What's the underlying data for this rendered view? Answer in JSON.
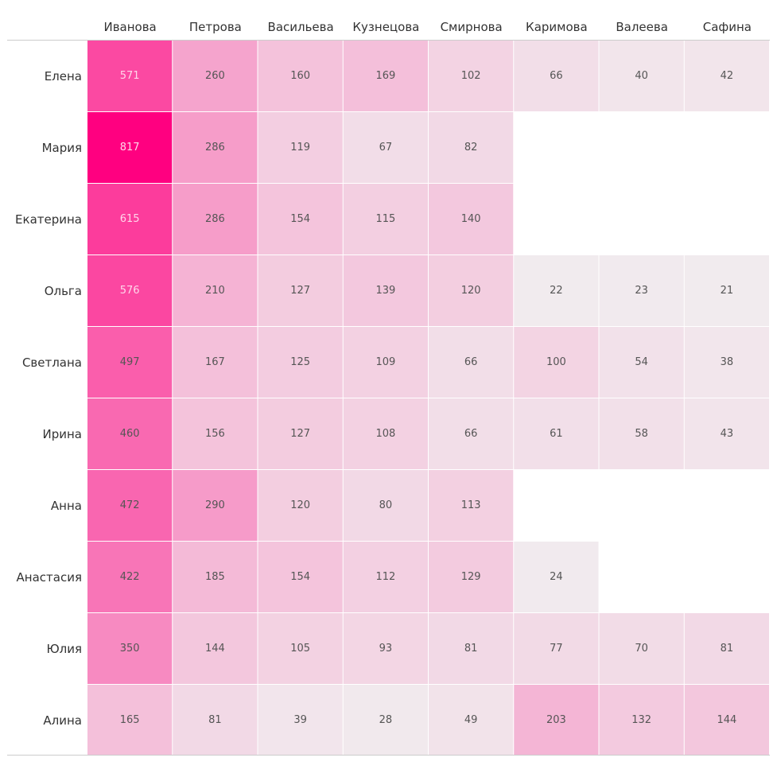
{
  "chart_data": {
    "type": "heatmap",
    "title": "",
    "xlabel": "",
    "ylabel": "",
    "columns": [
      "Иванова",
      "Петрова",
      "Васильева",
      "Кузнецова",
      "Смирнова",
      "Каримова",
      "Валеева",
      "Сафина"
    ],
    "rows": [
      "Елена",
      "Мария",
      "Екатерина",
      "Ольга",
      "Светлана",
      "Ирина",
      "Анна",
      "Анастасия",
      "Юлия",
      "Алина"
    ],
    "values": [
      [
        571,
        260,
        160,
        169,
        102,
        66,
        40,
        42
      ],
      [
        817,
        286,
        119,
        67,
        82,
        null,
        null,
        null
      ],
      [
        615,
        286,
        154,
        115,
        140,
        null,
        null,
        null
      ],
      [
        576,
        210,
        127,
        139,
        120,
        22,
        23,
        21
      ],
      [
        497,
        167,
        125,
        109,
        66,
        100,
        54,
        38
      ],
      [
        460,
        156,
        127,
        108,
        66,
        61,
        58,
        43
      ],
      [
        472,
        290,
        120,
        80,
        113,
        null,
        null,
        null
      ],
      [
        422,
        185,
        154,
        112,
        129,
        24,
        null,
        null
      ],
      [
        350,
        144,
        105,
        93,
        81,
        77,
        70,
        81
      ],
      [
        165,
        81,
        39,
        28,
        49,
        203,
        132,
        144
      ]
    ],
    "color_scale": {
      "low": "#f1f1f1",
      "high": "#ff0080"
    },
    "grid": false,
    "legend": "none"
  }
}
